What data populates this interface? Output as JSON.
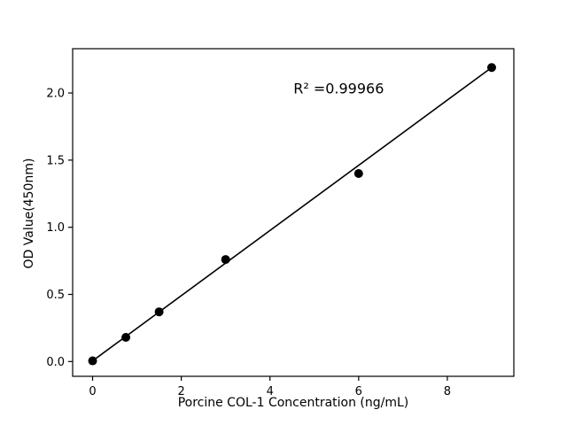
{
  "chart_data": {
    "type": "scatter",
    "title": "",
    "xlabel": "Porcine COL-1 Concentration (ng/mL)",
    "ylabel": "OD Value(450nm)",
    "annotation": "R² =0.99966",
    "annotation_xy": [
      5.55,
      2.03
    ],
    "points": {
      "x": [
        0,
        0.75,
        1.5,
        3,
        6,
        9
      ],
      "y": [
        0.005,
        0.18,
        0.37,
        0.76,
        1.4,
        2.19
      ]
    },
    "fit_line": {
      "x": [
        0,
        9
      ],
      "y": [
        0.005,
        2.19
      ]
    },
    "xlim": [
      -0.45,
      9.5
    ],
    "ylim": [
      -0.11,
      2.33
    ],
    "xticks": [
      0,
      2,
      4,
      6,
      8
    ],
    "yticks": [
      0.0,
      0.5,
      1.0,
      1.5,
      2.0
    ],
    "ytick_decimals": 1,
    "grid": false,
    "legend": "none",
    "marker_radius": 5,
    "colors": {
      "marker": "#000000",
      "line": "#000000",
      "axis": "#000000",
      "tick_text": "#000000",
      "background": "#ffffff"
    }
  }
}
